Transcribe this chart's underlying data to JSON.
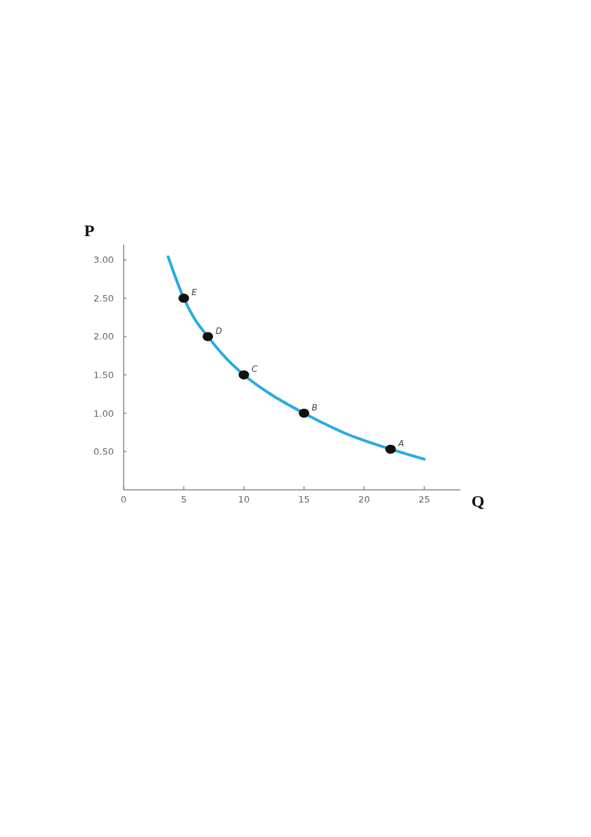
{
  "chart_data": {
    "type": "line",
    "xlabel": "Q",
    "ylabel": "P",
    "xlim": [
      0,
      28
    ],
    "ylim": [
      0,
      3.2
    ],
    "xticks": [
      0,
      5,
      10,
      15,
      20,
      25
    ],
    "yticks": [
      {
        "value": 0.5,
        "label": "0.50"
      },
      {
        "value": 1,
        "label": "1.00"
      },
      {
        "value": 1.5,
        "label": "1.50"
      },
      {
        "value": 2,
        "label": "2.00"
      },
      {
        "value": 2.5,
        "label": "2.50"
      },
      {
        "value": 3,
        "label": "3.00"
      }
    ],
    "series": [
      {
        "color": "#29abe2",
        "marker": "none",
        "x": [
          3.7,
          5,
          5.9,
          7,
          8.5,
          10,
          12.3,
          15,
          18.7,
          22.2,
          25
        ],
        "values": [
          3.04,
          2.5,
          2.23,
          2.0,
          1.72,
          1.5,
          1.24,
          1.0,
          0.72,
          0.53,
          0.4
        ]
      },
      {
        "type": "scatter",
        "color": "#111111",
        "marker": "circle",
        "x": [
          5,
          7,
          10,
          15,
          22.2
        ],
        "values": [
          2.5,
          2.0,
          1.5,
          1.0,
          0.53
        ]
      }
    ],
    "annotations": [
      {
        "text": "E",
        "x": 5,
        "y": 2.5
      },
      {
        "text": "D",
        "x": 7,
        "y": 2.0
      },
      {
        "text": "C",
        "x": 10,
        "y": 1.5
      },
      {
        "text": "B",
        "x": 15,
        "y": 1.0
      },
      {
        "text": "A",
        "x": 22.2,
        "y": 0.53
      }
    ]
  }
}
